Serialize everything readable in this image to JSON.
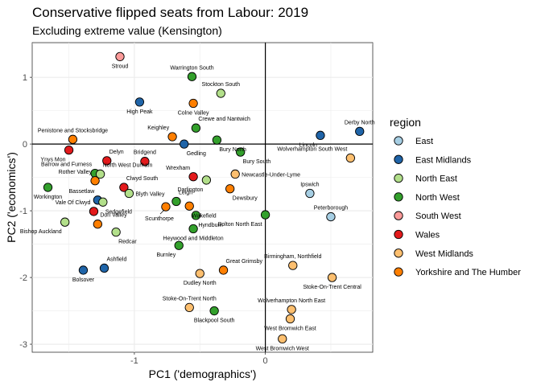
{
  "chart_data": {
    "type": "scatter",
    "title": "Conservative flipped seats from Labour: 2019",
    "subtitle": "Excluding extreme value (Kensington)",
    "xlabel": "PC1 ('demographics')",
    "ylabel": "PC2 ('economics')",
    "xlim": [
      -1.78,
      0.82
    ],
    "ylim": [
      -3.12,
      1.52
    ],
    "x_ticks": [
      -1,
      0
    ],
    "y_ticks": [
      1,
      0,
      -1,
      -2,
      -3
    ],
    "x_tick_labels": [
      "-1",
      "0"
    ],
    "y_tick_labels": [
      "1",
      "0",
      "-1",
      "-2",
      "-3"
    ],
    "grid": true,
    "reference_lines": {
      "x": 0,
      "y": 0
    },
    "legend": {
      "title": "region",
      "placement": "right",
      "entries": [
        {
          "name": "East",
          "color": "#a6cee3"
        },
        {
          "name": "East Midlands",
          "color": "#1f64a8"
        },
        {
          "name": "North East",
          "color": "#b2df8a"
        },
        {
          "name": "North West",
          "color": "#33a02c"
        },
        {
          "name": "South West",
          "color": "#fb9a99"
        },
        {
          "name": "Wales",
          "color": "#e31a1c"
        },
        {
          "name": "West Midlands",
          "color": "#fdbf6f"
        },
        {
          "name": "Yorkshire and The Humber",
          "color": "#ff7f00"
        }
      ]
    },
    "points": [
      {
        "label": "Stroud",
        "x": -1.11,
        "y": 1.31,
        "region": "South West",
        "lpos": "below"
      },
      {
        "label": "Warrington South",
        "x": -0.56,
        "y": 1.01,
        "region": "North West",
        "lpos": "above"
      },
      {
        "label": "High Peak",
        "x": -0.96,
        "y": 0.63,
        "region": "East Midlands",
        "lpos": "below"
      },
      {
        "label": "Stockton South",
        "x": -0.34,
        "y": 0.76,
        "region": "North East",
        "lpos": "above"
      },
      {
        "label": "Colne Valley",
        "x": -0.55,
        "y": 0.61,
        "region": "Yorkshire and The Humber",
        "lpos": "below"
      },
      {
        "label": "Crewe and Nantwich",
        "x": -0.53,
        "y": 0.24,
        "region": "North West",
        "lpos": "aboveright"
      },
      {
        "label": "Derby North",
        "x": 0.72,
        "y": 0.19,
        "region": "East Midlands",
        "lpos": "above"
      },
      {
        "label": "Lincoln",
        "x": 0.42,
        "y": 0.13,
        "region": "East Midlands",
        "lpos": "belowleft"
      },
      {
        "label": "Penistone and Stocksbridge",
        "x": -1.47,
        "y": 0.07,
        "region": "Yorkshire and The Humber",
        "lpos": "above"
      },
      {
        "label": "Keighley",
        "x": -0.71,
        "y": 0.11,
        "region": "Yorkshire and The Humber",
        "lpos": "aboveleft"
      },
      {
        "label": "Gedling",
        "x": -0.62,
        "y": 0.0,
        "region": "East Midlands",
        "lpos": "belowright"
      },
      {
        "label": "Bury North",
        "x": -0.37,
        "y": 0.06,
        "region": "North West",
        "lpos": "belowright"
      },
      {
        "label": "Bury South",
        "x": -0.19,
        "y": -0.12,
        "region": "North West",
        "lpos": "belowright"
      },
      {
        "label": "Wolverhampton South West",
        "x": 0.65,
        "y": -0.21,
        "region": "West Midlands",
        "lpos": "aboveleft"
      },
      {
        "label": "Ynys Mon",
        "x": -1.5,
        "y": -0.09,
        "region": "Wales",
        "lpos": "belowleft"
      },
      {
        "label": "Delyn",
        "x": -1.21,
        "y": -0.25,
        "region": "Wales",
        "lpos": "aboveright"
      },
      {
        "label": "Bridgend",
        "x": -0.92,
        "y": -0.26,
        "region": "Wales",
        "lpos": "above"
      },
      {
        "label": "Barrow and Furness",
        "x": -1.3,
        "y": -0.44,
        "region": "North West",
        "lpos": "aboveleft"
      },
      {
        "label": "North West Durham",
        "x": -1.26,
        "y": -0.45,
        "region": "North East",
        "lpos": "aboveright"
      },
      {
        "label": "Rother Valley",
        "x": -1.3,
        "y": -0.55,
        "region": "Yorkshire and The Humber",
        "lpos": "aboveleft"
      },
      {
        "label": "Wrexham",
        "x": -0.55,
        "y": -0.49,
        "region": "Wales",
        "lpos": "aboveleft"
      },
      {
        "label": "Newcastle-Under-Lyme",
        "x": -0.23,
        "y": -0.45,
        "region": "West Midlands",
        "lpos": "right"
      },
      {
        "label": "Darlington",
        "x": -0.45,
        "y": -0.54,
        "region": "North East",
        "lpos": "belowleft"
      },
      {
        "label": "Dewsbury",
        "x": -0.27,
        "y": -0.67,
        "region": "Yorkshire and The Humber",
        "lpos": "belowright"
      },
      {
        "label": "Ipswich",
        "x": 0.34,
        "y": -0.74,
        "region": "East",
        "lpos": "above"
      },
      {
        "label": "Workington",
        "x": -1.66,
        "y": -0.65,
        "region": "North West",
        "lpos": "below"
      },
      {
        "label": "Clwyd South",
        "x": -1.08,
        "y": -0.65,
        "region": "Wales",
        "lpos": "aboveright"
      },
      {
        "label": "Blyth Valley",
        "x": -1.04,
        "y": -0.74,
        "region": "North East",
        "lpos": "right"
      },
      {
        "label": "Bassetlaw",
        "x": -1.28,
        "y": -0.84,
        "region": "East Midlands",
        "lpos": "aboveleft"
      },
      {
        "label": "Sedgefield",
        "x": -1.24,
        "y": -0.87,
        "region": "North East",
        "lpos": "belowright"
      },
      {
        "label": "Leigh",
        "x": -0.68,
        "y": -0.86,
        "region": "North West",
        "lpos": "aboveright"
      },
      {
        "label": "Wakefield",
        "x": -0.58,
        "y": -0.93,
        "region": "Yorkshire and The Humber",
        "lpos": "belowright"
      },
      {
        "label": "Scunthorpe",
        "x": -0.76,
        "y": -0.94,
        "region": "Yorkshire and The Humber",
        "lpos": "scunthorpe"
      },
      {
        "label": "Vale Of Clwyd",
        "x": -1.31,
        "y": -1.01,
        "region": "Wales",
        "lpos": "aboveleft"
      },
      {
        "label": "Don Valley",
        "x": -1.28,
        "y": -1.2,
        "region": "Yorkshire and The Humber",
        "lpos": "aboveright"
      },
      {
        "label": "Hyndburn",
        "x": -0.53,
        "y": -1.07,
        "region": "North West",
        "lpos": "belowright"
      },
      {
        "label": "Bolton North East",
        "x": 0.0,
        "y": -1.06,
        "region": "North West",
        "lpos": "belowleft"
      },
      {
        "label": "Peterborough",
        "x": 0.5,
        "y": -1.09,
        "region": "East",
        "lpos": "above"
      },
      {
        "label": "Bishop Auckland",
        "x": -1.53,
        "y": -1.17,
        "region": "North East",
        "lpos": "belowleft"
      },
      {
        "label": "Redcar",
        "x": -1.14,
        "y": -1.32,
        "region": "North East",
        "lpos": "belowright"
      },
      {
        "label": "Heywood and Middleton",
        "x": -0.55,
        "y": -1.27,
        "region": "North West",
        "lpos": "below"
      },
      {
        "label": "Burnley",
        "x": -0.66,
        "y": -1.52,
        "region": "North West",
        "lpos": "belowleft"
      },
      {
        "label": "Ashfield",
        "x": -1.23,
        "y": -1.86,
        "region": "East Midlands",
        "lpos": "aboveright"
      },
      {
        "label": "Bolsover",
        "x": -1.39,
        "y": -1.89,
        "region": "East Midlands",
        "lpos": "below"
      },
      {
        "label": "Great Grimsby",
        "x": -0.32,
        "y": -1.89,
        "region": "Yorkshire and The Humber",
        "lpos": "aboveright"
      },
      {
        "label": "Dudley North",
        "x": -0.5,
        "y": -1.94,
        "region": "West Midlands",
        "lpos": "below"
      },
      {
        "label": "Birmingham, Northfield",
        "x": 0.21,
        "y": -1.82,
        "region": "West Midlands",
        "lpos": "above"
      },
      {
        "label": "Stoke-On-Trent Central",
        "x": 0.51,
        "y": -2.0,
        "region": "West Midlands",
        "lpos": "below"
      },
      {
        "label": "Stoke-On-Trent North",
        "x": -0.58,
        "y": -2.45,
        "region": "West Midlands",
        "lpos": "above"
      },
      {
        "label": "Blackpool South",
        "x": -0.39,
        "y": -2.5,
        "region": "North West",
        "lpos": "below"
      },
      {
        "label": "Wolverhampton North East",
        "x": 0.2,
        "y": -2.48,
        "region": "West Midlands",
        "lpos": "above"
      },
      {
        "label": "West Bromwich East",
        "x": 0.19,
        "y": -2.62,
        "region": "West Midlands",
        "lpos": "below"
      },
      {
        "label": "West Bromwich West",
        "x": 0.13,
        "y": -2.92,
        "region": "West Midlands",
        "lpos": "below"
      }
    ]
  }
}
